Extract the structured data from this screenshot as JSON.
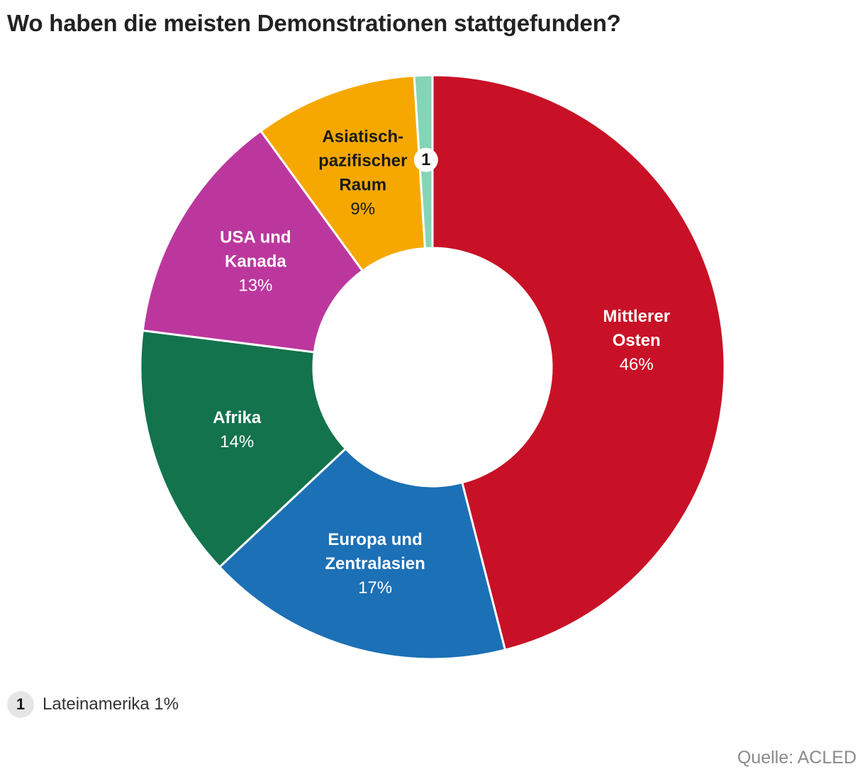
{
  "title": "Wo haben die meisten Demonstrationen stattgefunden?",
  "chart_data": {
    "type": "pie",
    "variant": "donut",
    "title": "Wo haben die meisten Demonstrationen stattgefunden?",
    "unit": "%",
    "slices": [
      {
        "name": "Mittlerer Osten",
        "label_lines": [
          "Mittlerer",
          "Osten"
        ],
        "value": 46,
        "value_label": "46%",
        "color": "#c81126",
        "text_color": "#ffffff"
      },
      {
        "name": "Europa und Zentralasien",
        "label_lines": [
          "Europa und",
          "Zentralasien"
        ],
        "value": 17,
        "value_label": "17%",
        "color": "#1c70b6",
        "text_color": "#ffffff"
      },
      {
        "name": "Afrika",
        "label_lines": [
          "Afrika"
        ],
        "value": 14,
        "value_label": "14%",
        "color": "#13734d",
        "text_color": "#ffffff"
      },
      {
        "name": "USA und Kanada",
        "label_lines": [
          "USA und",
          "Kanada"
        ],
        "value": 13,
        "value_label": "13%",
        "color": "#bb379e",
        "text_color": "#ffffff"
      },
      {
        "name": "Asiatisch-pazifischer Raum",
        "label_lines": [
          "Asiatisch-",
          "pazifischer",
          "Raum"
        ],
        "value": 9,
        "value_label": "9%",
        "color": "#f6a800",
        "text_color": "#1a1a1a"
      },
      {
        "name": "Lateinamerika",
        "label_lines": [],
        "value": 1,
        "value_label": "1%",
        "color": "#85d4b6",
        "text_color": "#1a1a1a",
        "footnote_marker": "1"
      }
    ]
  },
  "footnote": {
    "marker": "1",
    "text": "Lateinamerika 1%"
  },
  "source": "Quelle: ACLED"
}
